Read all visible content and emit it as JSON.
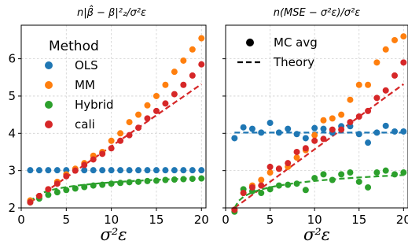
{
  "chart_data": [
    {
      "type": "scatter",
      "title": "n|β̂ − β|²₂/σ²ε",
      "xlabel": "σ²ε",
      "ylabel": "",
      "xlim": [
        0,
        20.5
      ],
      "ylim": [
        2,
        6.9
      ],
      "x_ticks": [
        0,
        5,
        10,
        15,
        20
      ],
      "y_ticks": [
        2,
        3,
        4,
        5,
        6
      ],
      "grid": true,
      "legend": {
        "title": "Method",
        "placement": "top-left",
        "entries": [
          "OLS",
          "MM",
          "Hybrid",
          "cali"
        ]
      },
      "x": [
        1,
        2,
        3,
        4,
        5,
        6,
        7,
        8,
        9,
        10,
        11,
        12,
        13,
        14,
        15,
        16,
        17,
        18,
        19,
        20
      ],
      "series": [
        {
          "name": "OLS",
          "color": "#1f77b4",
          "values": [
            3.01,
            3.01,
            3.01,
            3.01,
            3.01,
            3.01,
            3.01,
            3.01,
            3.01,
            3.01,
            3.01,
            3.01,
            3.01,
            3.01,
            3.01,
            3.01,
            3.01,
            3.01,
            3.01,
            3.01
          ]
        },
        {
          "name": "MM",
          "color": "#ff7f0e",
          "values": [
            2.2,
            2.3,
            2.5,
            2.7,
            2.9,
            3.05,
            3.2,
            3.4,
            3.5,
            3.8,
            4.0,
            4.3,
            4.5,
            4.75,
            5.0,
            5.3,
            5.65,
            5.95,
            6.25,
            6.55
          ]
        },
        {
          "name": "Hybrid",
          "color": "#2ca02c",
          "values": [
            2.15,
            2.25,
            2.35,
            2.42,
            2.48,
            2.52,
            2.56,
            2.6,
            2.62,
            2.65,
            2.67,
            2.69,
            2.7,
            2.72,
            2.73,
            2.75,
            2.76,
            2.77,
            2.78,
            2.79
          ]
        },
        {
          "name": "cali",
          "color": "#d62728",
          "values": [
            2.15,
            2.32,
            2.5,
            2.65,
            2.85,
            3.0,
            3.15,
            3.3,
            3.45,
            3.6,
            3.8,
            3.95,
            4.15,
            4.4,
            4.6,
            4.8,
            5.05,
            5.3,
            5.55,
            5.85
          ]
        }
      ],
      "theory_lines": [
        {
          "name": "cali",
          "color": "#d62728",
          "x": [
            1,
            20
          ],
          "y": [
            2.15,
            5.32
          ]
        },
        {
          "name": "Hybrid",
          "color": "#2ca02c",
          "curve": "hybrid",
          "x": [
            1,
            20
          ],
          "y": [
            2.15,
            2.8
          ]
        }
      ]
    },
    {
      "type": "scatter",
      "title": "n(MSE − σ²ε)/σ²ε",
      "xlabel": "σ²ε",
      "ylabel": "",
      "xlim": [
        0,
        20.5
      ],
      "ylim": [
        2,
        6.9
      ],
      "x_ticks": [
        0,
        5,
        10,
        15,
        20
      ],
      "y_ticks": [
        2,
        3,
        4,
        5,
        6
      ],
      "grid": true,
      "legend": {
        "placement": "top-left",
        "entries": [
          "MC avg",
          "Theory"
        ]
      },
      "x": [
        1,
        2,
        3,
        4,
        5,
        6,
        7,
        8,
        9,
        10,
        11,
        12,
        13,
        14,
        15,
        16,
        17,
        18,
        19,
        20
      ],
      "series": [
        {
          "name": "OLS",
          "color": "#1f77b4",
          "values": [
            3.87,
            4.16,
            4.12,
            4.02,
            4.28,
            4.02,
            4.12,
            3.98,
            3.87,
            4.14,
            4.12,
            4.02,
            4.19,
            4.19,
            3.98,
            3.75,
            4.02,
            4.2,
            4.05,
            4.05
          ]
        },
        {
          "name": "MM",
          "color": "#ff7f0e",
          "values": [
            1.95,
            2.4,
            2.6,
            2.75,
            2.95,
            3.05,
            3.1,
            3.35,
            3.55,
            3.95,
            4.35,
            4.4,
            4.5,
            4.9,
            5.3,
            5.3,
            5.9,
            6.25,
            6.5,
            6.6
          ]
        },
        {
          "name": "Hybrid",
          "color": "#2ca02c",
          "values": [
            1.9,
            2.5,
            2.45,
            2.4,
            2.5,
            2.6,
            2.62,
            2.65,
            2.48,
            2.8,
            2.9,
            2.75,
            2.9,
            2.95,
            2.7,
            2.55,
            2.95,
            3.0,
            2.9,
            2.95
          ]
        },
        {
          "name": "cali",
          "color": "#d62728",
          "values": [
            1.95,
            2.4,
            2.55,
            2.6,
            3.1,
            3.05,
            3.2,
            3.5,
            3.6,
            3.8,
            3.85,
            4.1,
            4.1,
            4.3,
            4.45,
            4.6,
            4.95,
            5.15,
            5.55,
            5.9
          ]
        }
      ],
      "theory_lines": [
        {
          "name": "OLS",
          "color": "#1f77b4",
          "x": [
            1,
            20
          ],
          "y": [
            4.02,
            4.02
          ]
        },
        {
          "name": "cali",
          "color": "#d62728",
          "x": [
            1,
            20
          ],
          "y": [
            2.0,
            5.32
          ]
        },
        {
          "name": "Hybrid",
          "color": "#2ca02c",
          "curve": "hybrid",
          "x": [
            1,
            20
          ],
          "y": [
            2.0,
            2.88
          ]
        }
      ]
    }
  ]
}
